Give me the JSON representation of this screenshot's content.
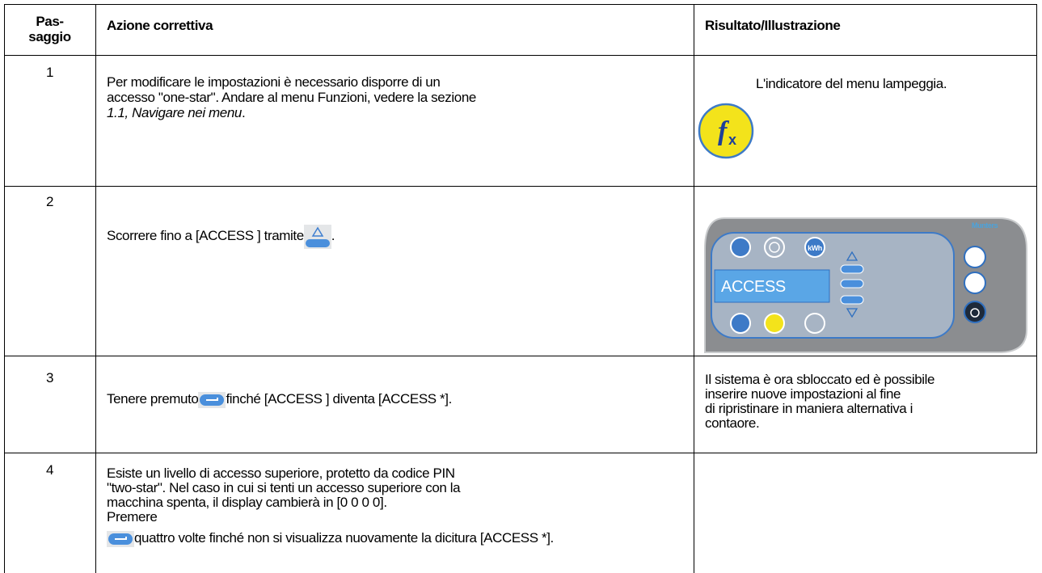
{
  "header": {
    "step": [
      "Pas-",
      "saggio"
    ],
    "action": "Azione correttiva",
    "result": "Risultato/Illustrazione"
  },
  "rows": [
    {
      "step": "1",
      "action": [
        "Per modificare le impostazioni è necessario disporre di un",
        "accesso \"one-star\". Andare al menu Funzioni, vedere la sezione"
      ],
      "action_ref": "1.1, Navigare nei menu",
      "action_end": ".",
      "result": "L'indicatore del menu lampeggia.",
      "icon": {
        "main": "f",
        "sub": "x"
      }
    },
    {
      "step": "2",
      "action": "Scorrere fino a [ACCESS ] tramite",
      "action_end": ".",
      "device": {
        "brand": "Munters",
        "kwh": "kWh",
        "display": "ACCESS"
      }
    },
    {
      "step": "3",
      "action": "Tenere premuto",
      "action_end": "finché [ACCESS ] diventa [ACCESS *].",
      "result": [
        "Il sistema è ora sbloccato ed è possibile",
        "inserire nuove impostazioni al fine",
        "di ripristinare in maniera alternativa i",
        "contaore."
      ]
    },
    {
      "step": "4",
      "action": [
        "Esiste un livello di accesso superiore, protetto da codice PIN",
        "\"two-star\". Nel caso in cui si tenti un accesso superiore con la",
        "macchina spenta, il display cambierà in [0 0 0 0].",
        "Premere"
      ],
      "action_end": "quattro volte finché non si visualizza nuovamente la dicitura [ACCESS *]."
    }
  ]
}
